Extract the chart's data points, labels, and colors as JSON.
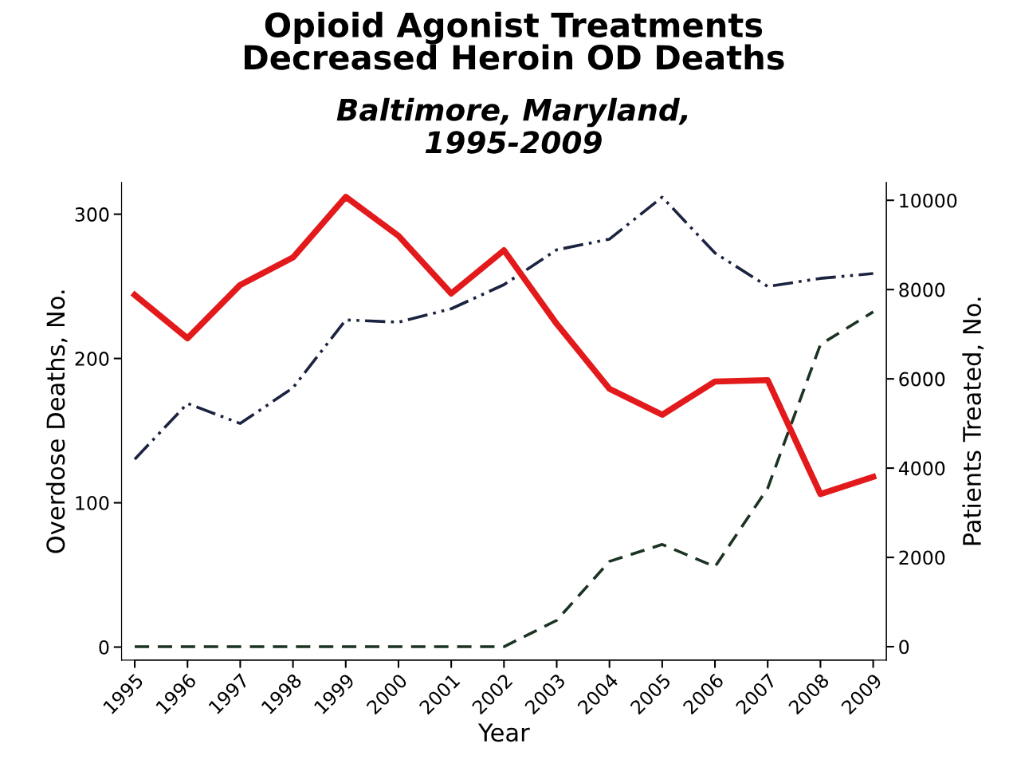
{
  "chart_data": {
    "type": "line",
    "title": "Opioid Agonist Treatments\nDecreased Heroin OD Deaths",
    "subtitle": "Baltimore, Maryland,\n1995-2009",
    "xlabel": "Year",
    "ylabel": "Overdose Deaths, No.",
    "y2label": "Patients Treated, No.",
    "categories": [
      "1995",
      "1996",
      "1997",
      "1998",
      "1999",
      "2000",
      "2001",
      "2002",
      "2003",
      "2004",
      "2005",
      "2006",
      "2007",
      "2008",
      "2009"
    ],
    "series": [
      {
        "color": "#e31a1c",
        "line_style": "solid",
        "values": [
          244,
          214,
          251,
          270,
          312,
          285,
          245,
          275,
          224,
          179,
          161,
          184,
          185,
          106,
          118
        ]
      },
      {
        "color": "#1b2340",
        "line_style": "dashdot",
        "axis": "y2",
        "values": [
          4200,
          5450,
          5000,
          5800,
          7320,
          7270,
          7570,
          8110,
          8890,
          9130,
          10070,
          8820,
          8070,
          8250,
          8360
        ]
      },
      {
        "color": "#1b3322",
        "line_style": "dashed",
        "axis": "y2",
        "values": [
          0,
          0,
          0,
          0,
          0,
          0,
          0,
          0,
          590,
          1910,
          2290,
          1790,
          3550,
          6770,
          7500
        ]
      }
    ],
    "ylim": [
      -9,
      322
    ],
    "yticks": [
      0,
      100,
      200,
      300
    ],
    "y2lim": [
      -300,
      10400
    ],
    "y2ticks": [
      0,
      2000,
      4000,
      6000,
      8000,
      10000
    ],
    "grid": false,
    "marker": "none"
  }
}
